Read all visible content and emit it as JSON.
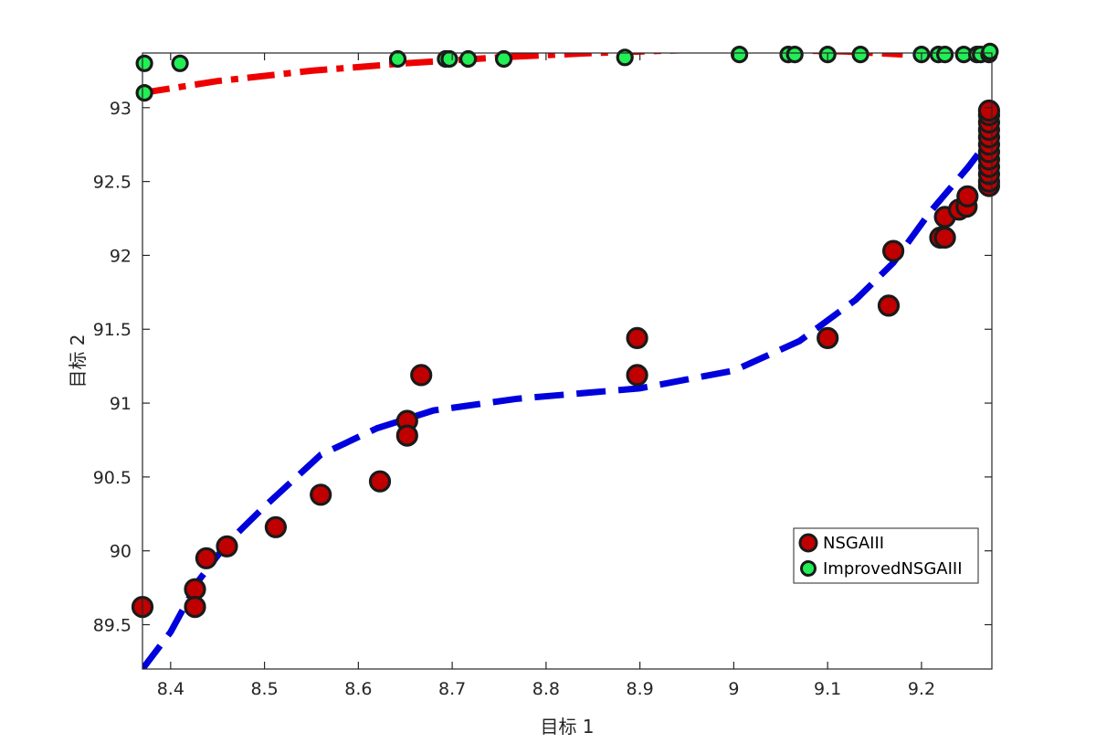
{
  "chart_data": {
    "type": "scatter",
    "title": "",
    "xlabel": "目标 1",
    "ylabel": "目标 2",
    "xlim": [
      8.37,
      9.275
    ],
    "ylim": [
      89.2,
      93.37
    ],
    "x_ticks": [
      8.4,
      8.5,
      8.6,
      8.7,
      8.8,
      8.9,
      9.0,
      9.1,
      9.2
    ],
    "x_tick_labels": [
      "8.4",
      "8.5",
      "8.6",
      "8.7",
      "8.8",
      "8.9",
      "9",
      "9.1",
      "9.2"
    ],
    "y_ticks": [
      89.5,
      90,
      90.5,
      91,
      91.5,
      92,
      92.5,
      93
    ],
    "y_tick_labels": [
      "89.5",
      "90",
      "90.5",
      "91",
      "91.5",
      "92",
      "92.5",
      "93"
    ],
    "grid": false,
    "legend_position": "bottom-right",
    "series": [
      {
        "name": "NSGAIII",
        "kind": "scatter",
        "color": "#c00000",
        "edge_color": "#1a1a1a",
        "points": [
          [
            8.37,
            89.62
          ],
          [
            8.426,
            89.74
          ],
          [
            8.426,
            89.62
          ],
          [
            8.438,
            89.95
          ],
          [
            8.46,
            90.03
          ],
          [
            8.512,
            90.16
          ],
          [
            8.56,
            90.38
          ],
          [
            8.623,
            90.47
          ],
          [
            8.652,
            90.88
          ],
          [
            8.652,
            90.78
          ],
          [
            8.667,
            91.19
          ],
          [
            8.897,
            91.44
          ],
          [
            8.897,
            91.19
          ],
          [
            9.1,
            91.44
          ],
          [
            9.165,
            91.66
          ],
          [
            9.17,
            92.03
          ],
          [
            9.22,
            92.12
          ],
          [
            9.225,
            92.12
          ],
          [
            9.225,
            92.26
          ],
          [
            9.24,
            92.31
          ],
          [
            9.248,
            92.33
          ],
          [
            9.249,
            92.4
          ],
          [
            9.272,
            92.47
          ],
          [
            9.272,
            92.5
          ],
          [
            9.272,
            92.55
          ],
          [
            9.272,
            92.6
          ],
          [
            9.272,
            92.65
          ],
          [
            9.272,
            92.7
          ],
          [
            9.272,
            92.75
          ],
          [
            9.272,
            92.8
          ],
          [
            9.272,
            92.85
          ],
          [
            9.272,
            92.9
          ],
          [
            9.272,
            92.95
          ],
          [
            9.272,
            92.98
          ]
        ]
      },
      {
        "name": "ImprovedNSGAIII",
        "kind": "scatter",
        "color": "#22ee55",
        "edge_color": "#1a1a1a",
        "points": [
          [
            8.372,
            93.3
          ],
          [
            8.372,
            93.1
          ],
          [
            8.41,
            93.3
          ],
          [
            8.642,
            93.33
          ],
          [
            8.693,
            93.33
          ],
          [
            8.697,
            93.33
          ],
          [
            8.717,
            93.33
          ],
          [
            8.755,
            93.33
          ],
          [
            8.884,
            93.34
          ],
          [
            9.006,
            93.36
          ],
          [
            9.058,
            93.36
          ],
          [
            9.065,
            93.36
          ],
          [
            9.1,
            93.36
          ],
          [
            9.135,
            93.36
          ],
          [
            9.2,
            93.36
          ],
          [
            9.218,
            93.36
          ],
          [
            9.225,
            93.36
          ],
          [
            9.245,
            93.36
          ],
          [
            9.259,
            93.36
          ],
          [
            9.263,
            93.36
          ],
          [
            9.272,
            93.36
          ],
          [
            9.273,
            93.38
          ]
        ]
      },
      {
        "kind": "line",
        "color": "#0000dd",
        "dash": "dashed",
        "points": [
          [
            8.37,
            89.2
          ],
          [
            8.4,
            89.45
          ],
          [
            8.43,
            89.8
          ],
          [
            8.46,
            90.05
          ],
          [
            8.5,
            90.3
          ],
          [
            8.56,
            90.65
          ],
          [
            8.62,
            90.83
          ],
          [
            8.68,
            90.95
          ],
          [
            8.77,
            91.03
          ],
          [
            8.9,
            91.1
          ],
          [
            9.0,
            91.22
          ],
          [
            9.07,
            91.42
          ],
          [
            9.13,
            91.7
          ],
          [
            9.17,
            91.95
          ],
          [
            9.21,
            92.3
          ],
          [
            9.25,
            92.6
          ],
          [
            9.262,
            92.7
          ]
        ]
      },
      {
        "kind": "line",
        "color": "#ee0000",
        "dash": "dash-dot",
        "points": [
          [
            8.37,
            93.1
          ],
          [
            8.45,
            93.18
          ],
          [
            8.55,
            93.25
          ],
          [
            8.65,
            93.3
          ],
          [
            8.75,
            93.34
          ],
          [
            8.85,
            93.37
          ],
          [
            8.95,
            93.39
          ],
          [
            9.05,
            93.39
          ],
          [
            9.12,
            93.38
          ],
          [
            9.18,
            93.36
          ]
        ]
      }
    ]
  }
}
